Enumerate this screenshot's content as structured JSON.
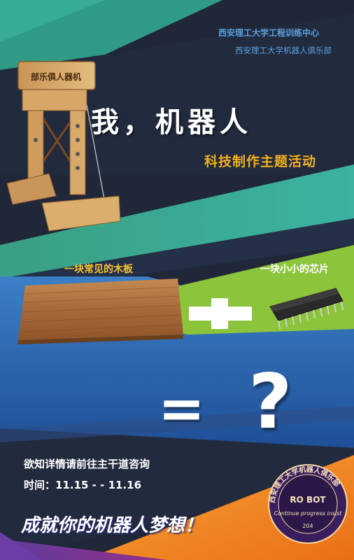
{
  "header": {
    "org_line1": "西安理工大学工程训练中心",
    "org_line2": "西安理工大学机器人俱乐部"
  },
  "hero": {
    "title": "我，机器人",
    "subtitle": "科技制作主题活动",
    "robot_sign": "部乐俱人器机"
  },
  "equation": {
    "wood_label": "一块常见的木板",
    "chip_label": "一块小小的芯片",
    "plus_symbol": "+",
    "equals_symbol": "=",
    "result_symbol": "?"
  },
  "footer": {
    "info_line": "欲知详情请前往主干道咨询",
    "time_line": "时间：11.15 - - 11.16",
    "slogan": "成就你的机器人梦想！"
  },
  "seal": {
    "arc_text": "西安理工大学机器人俱乐部",
    "logo_text": "RO BOT",
    "motto": "Continue progress insist",
    "number": "204"
  },
  "colors": {
    "dark_bg": "#1e2638",
    "teal": "#2fa58e",
    "blue": "#2a5fa8",
    "green": "#8cc63e",
    "orange": "#f08a24",
    "gold": "#f2b01e",
    "text_blue": "#5aa0dc"
  }
}
